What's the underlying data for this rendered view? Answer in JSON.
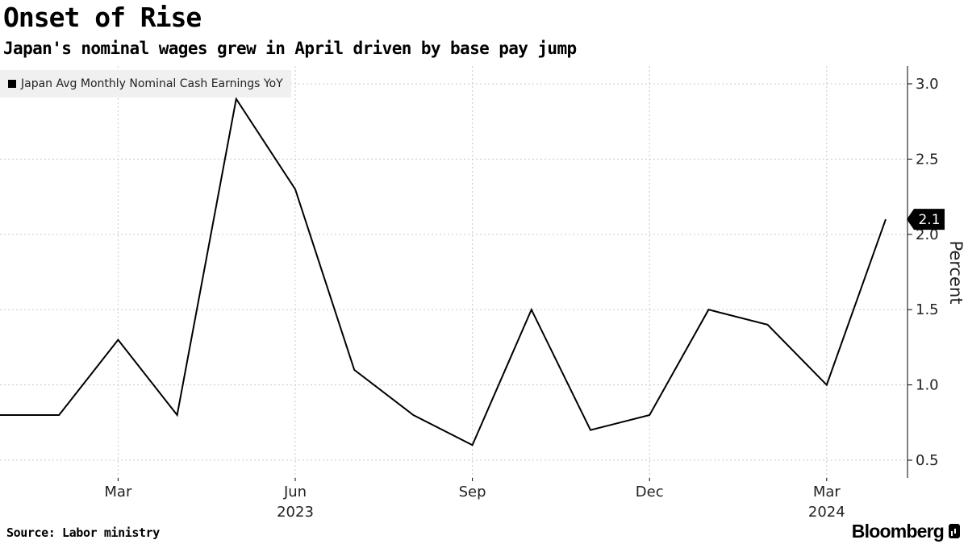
{
  "chart_data": {
    "type": "line",
    "title": "Onset of Rise",
    "subtitle": "Japan's nominal wages grew in April driven by base pay jump",
    "ylabel": "Percent",
    "xlabel": "",
    "ylim": [
      0.5,
      3.0
    ],
    "y_ticks": [
      0.5,
      1.0,
      1.5,
      2.0,
      2.5,
      3.0
    ],
    "y_tick_labels": [
      "0.5",
      "1.0",
      "1.5",
      "2.0",
      "2.5",
      "3.0"
    ],
    "x": [
      "2023-01",
      "2023-02",
      "2023-03",
      "2023-04",
      "2023-05",
      "2023-06",
      "2023-07",
      "2023-08",
      "2023-09",
      "2023-10",
      "2023-11",
      "2023-12",
      "2024-01",
      "2024-02",
      "2024-03",
      "2024-04"
    ],
    "x_tick_positions": [
      "2023-03",
      "2023-06",
      "2023-09",
      "2023-12",
      "2024-03"
    ],
    "x_tick_labels": [
      "Mar",
      "Jun",
      "Sep",
      "Dec",
      "Mar"
    ],
    "year_labels": [
      {
        "at": "2023-06",
        "label": "2023"
      },
      {
        "at": "2024-03",
        "label": "2024"
      }
    ],
    "series": [
      {
        "name": "Japan Avg Monthly Nominal Cash Earnings YoY",
        "color": "#000000",
        "values": [
          0.8,
          0.8,
          1.3,
          0.8,
          2.9,
          2.3,
          1.1,
          0.8,
          0.6,
          1.5,
          0.7,
          0.8,
          1.5,
          1.4,
          1.0,
          2.1
        ]
      }
    ],
    "last_value_label": "2.1",
    "grid": true,
    "legend": "top-left",
    "y_axis_position": "right"
  },
  "source": "Source: Labor ministry",
  "brand": "Bloomberg"
}
